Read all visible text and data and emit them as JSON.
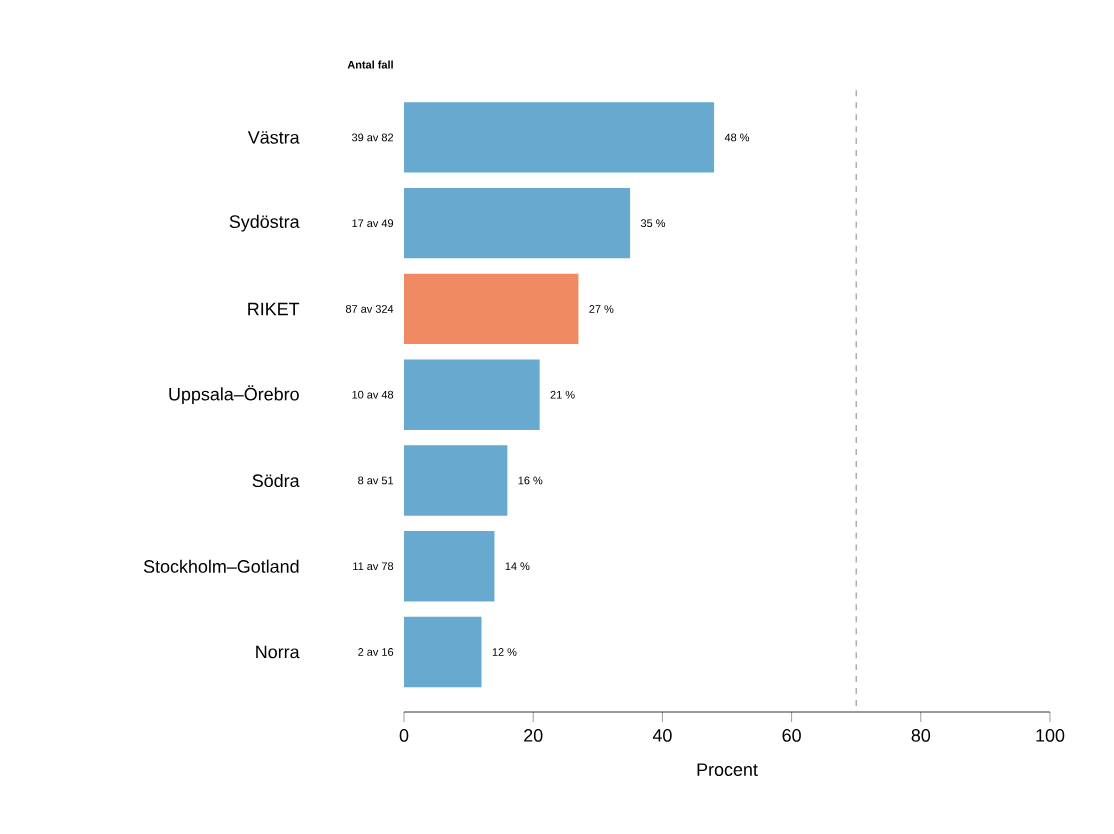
{
  "chart_data": {
    "type": "bar",
    "orientation": "horizontal",
    "xlabel": "Procent",
    "categories": [
      "Västra",
      "Sydöstra",
      "RIKET",
      "Uppsala–Örebro",
      "Södra",
      "Stockholm–Gotland",
      "Norra"
    ],
    "values": [
      48,
      35,
      27,
      21,
      16,
      14,
      12
    ],
    "value_labels": [
      "48 %",
      "35 %",
      "27 %",
      "21 %",
      "16 %",
      "14 %",
      "12 %"
    ],
    "colors": [
      "#67a9cf",
      "#67a9cf",
      "#ef8a62",
      "#67a9cf",
      "#67a9cf",
      "#67a9cf",
      "#67a9cf"
    ],
    "xlim": [
      0,
      100
    ],
    "xticks": [
      0,
      20,
      40,
      60,
      80,
      100
    ],
    "ref_lines": [
      {
        "axis": "x",
        "value": 70,
        "color": "#999999",
        "line_style": "dashed"
      }
    ],
    "annotations": [
      "Antal fall",
      "39 av 82",
      "17 av 49",
      "87 av 324",
      "10 av 48",
      "8 av 51",
      "11 av 78",
      "2 av 16"
    ],
    "grid": false
  }
}
